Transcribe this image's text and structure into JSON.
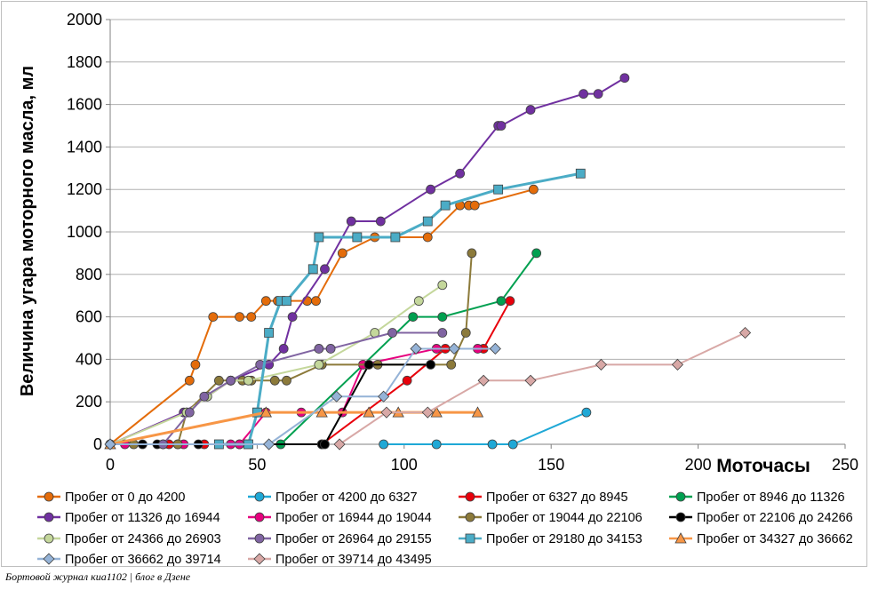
{
  "footer": "Бортовой журнал киа1102 | блог в Дзене",
  "chart_data": {
    "type": "line",
    "title": "",
    "xlabel": "Моточасы",
    "ylabel": "Величина угара моторного масла, мл",
    "xlim": [
      0,
      250
    ],
    "ylim": [
      0,
      2000
    ],
    "xticks": [
      0,
      50,
      100,
      150,
      200,
      250
    ],
    "yticks": [
      0,
      200,
      400,
      600,
      800,
      1000,
      1200,
      1400,
      1600,
      1800,
      2000
    ],
    "grid": "horizontal",
    "legend_position": "bottom",
    "series": [
      {
        "name": "Пробег от 0 до 4200",
        "color": "#E46C0A",
        "marker": "circle",
        "points": [
          [
            0,
            0
          ],
          [
            27,
            300
          ],
          [
            29,
            375
          ],
          [
            35,
            600
          ],
          [
            44,
            600
          ],
          [
            48,
            600
          ],
          [
            53,
            675
          ],
          [
            57,
            675
          ],
          [
            59,
            675
          ],
          [
            67,
            675
          ],
          [
            70,
            675
          ],
          [
            79,
            900
          ],
          [
            90,
            975
          ],
          [
            108,
            975
          ],
          [
            119,
            1125
          ],
          [
            122,
            1125
          ],
          [
            124,
            1125
          ],
          [
            144,
            1200
          ]
        ]
      },
      {
        "name": "Пробег от 4200 до 6327",
        "color": "#1FA8D6",
        "marker": "circle",
        "points": [
          [
            93,
            0
          ],
          [
            111,
            0
          ],
          [
            130,
            0
          ],
          [
            137,
            0
          ],
          [
            162,
            150
          ]
        ]
      },
      {
        "name": "Пробег от 6327 до 8945",
        "color": "#E8000B",
        "marker": "circle",
        "points": [
          [
            20,
            0
          ],
          [
            23,
            0
          ],
          [
            32,
            0
          ],
          [
            44,
            0
          ],
          [
            72,
            0
          ],
          [
            101,
            300
          ],
          [
            114,
            450
          ],
          [
            127,
            450
          ],
          [
            136,
            675
          ]
        ]
      },
      {
        "name": "Пробег от 8946 до 11326",
        "color": "#00A050",
        "marker": "circle",
        "points": [
          [
            58,
            0
          ],
          [
            103,
            600
          ],
          [
            113,
            600
          ],
          [
            133,
            675
          ],
          [
            145,
            900
          ]
        ]
      },
      {
        "name": "Пробег от 11326 до 16944",
        "color": "#7030A0",
        "marker": "circle",
        "points": [
          [
            0,
            0
          ],
          [
            25,
            150
          ],
          [
            33,
            225
          ],
          [
            41,
            300
          ],
          [
            54,
            375
          ],
          [
            59,
            450
          ],
          [
            62,
            600
          ],
          [
            73,
            825
          ],
          [
            82,
            1050
          ],
          [
            92,
            1050
          ],
          [
            109,
            1200
          ],
          [
            119,
            1275
          ],
          [
            132,
            1500
          ],
          [
            133,
            1500
          ],
          [
            143,
            1575
          ],
          [
            161,
            1650
          ],
          [
            166,
            1650
          ],
          [
            175,
            1725
          ]
        ]
      },
      {
        "name": "Пробег от 16944 до 19044",
        "color": "#E6007E",
        "marker": "circle",
        "points": [
          [
            5,
            0
          ],
          [
            18,
            0
          ],
          [
            25,
            0
          ],
          [
            41,
            0
          ],
          [
            44,
            0
          ],
          [
            53,
            150
          ],
          [
            65,
            150
          ],
          [
            79,
            150
          ],
          [
            86,
            375
          ],
          [
            111,
            450
          ],
          [
            125,
            450
          ]
        ]
      },
      {
        "name": "Пробег от 19044 до 22106",
        "color": "#8C7A3A",
        "marker": "circle",
        "points": [
          [
            8,
            0
          ],
          [
            23,
            0
          ],
          [
            26,
            150
          ],
          [
            37,
            300
          ],
          [
            45,
            300
          ],
          [
            48,
            300
          ],
          [
            56,
            300
          ],
          [
            60,
            300
          ],
          [
            72,
            375
          ],
          [
            91,
            375
          ],
          [
            116,
            375
          ],
          [
            121,
            525
          ],
          [
            123,
            900
          ]
        ]
      },
      {
        "name": "Пробег от 22106 до 24266",
        "color": "#000000",
        "marker": "circle",
        "points": [
          [
            11,
            0
          ],
          [
            16,
            0
          ],
          [
            30,
            0
          ],
          [
            72,
            0
          ],
          [
            73,
            0
          ],
          [
            88,
            375
          ],
          [
            109,
            375
          ]
        ]
      },
      {
        "name": "Пробег от 24366 до 26903",
        "color": "#C4D79B",
        "marker": "circle",
        "points": [
          [
            0,
            0
          ],
          [
            26,
            150
          ],
          [
            33,
            225
          ],
          [
            41,
            300
          ],
          [
            47,
            300
          ],
          [
            71,
            375
          ],
          [
            90,
            525
          ],
          [
            105,
            675
          ],
          [
            113,
            750
          ]
        ]
      },
      {
        "name": "Пробег от 26964 до 29155",
        "color": "#8064A2",
        "marker": "circle",
        "points": [
          [
            18,
            0
          ],
          [
            27,
            150
          ],
          [
            32,
            225
          ],
          [
            41,
            300
          ],
          [
            51,
            375
          ],
          [
            71,
            450
          ],
          [
            75,
            450
          ],
          [
            96,
            525
          ],
          [
            113,
            525
          ]
        ]
      },
      {
        "name": "Пробег от 29180 до 34153",
        "color": "#4BACC6",
        "marker": "square",
        "points": [
          [
            37,
            0
          ],
          [
            47,
            0
          ],
          [
            50,
            150
          ],
          [
            54,
            525
          ],
          [
            58,
            675
          ],
          [
            60,
            675
          ],
          [
            69,
            825
          ],
          [
            71,
            975
          ],
          [
            84,
            975
          ],
          [
            97,
            975
          ],
          [
            108,
            1050
          ],
          [
            114,
            1125
          ],
          [
            132,
            1200
          ],
          [
            160,
            1275
          ]
        ]
      },
      {
        "name": "Пробег от 34327 до 36662",
        "color": "#F79646",
        "marker": "triangle",
        "points": [
          [
            0,
            0
          ],
          [
            53,
            150
          ],
          [
            72,
            150
          ],
          [
            88,
            150
          ],
          [
            98,
            150
          ],
          [
            111,
            150
          ],
          [
            125,
            150
          ]
        ]
      },
      {
        "name": "Пробег от 36662 до 39714",
        "color": "#95B3D7",
        "marker": "diamond",
        "points": [
          [
            0,
            0
          ],
          [
            54,
            0
          ],
          [
            77,
            225
          ],
          [
            93,
            225
          ],
          [
            104,
            450
          ],
          [
            117,
            450
          ],
          [
            131,
            450
          ]
        ]
      },
      {
        "name": "Пробег от 39714 до 43495",
        "color": "#D8A8A6",
        "marker": "diamond",
        "points": [
          [
            78,
            0
          ],
          [
            94,
            150
          ],
          [
            108,
            150
          ],
          [
            127,
            300
          ],
          [
            143,
            300
          ],
          [
            167,
            375
          ],
          [
            193,
            375
          ],
          [
            216,
            525
          ]
        ]
      }
    ]
  }
}
